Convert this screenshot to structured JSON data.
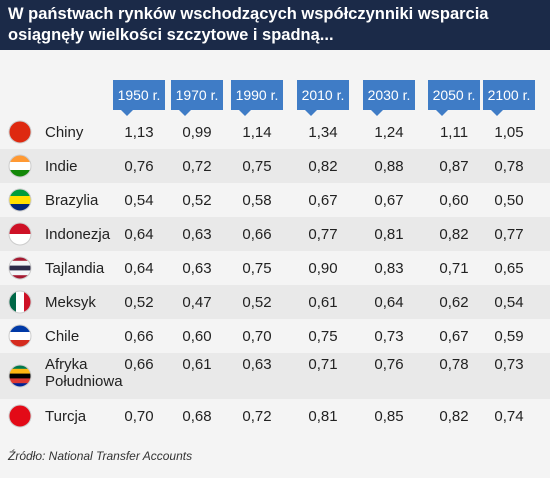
{
  "header": {
    "title": [
      "W państwach rynków wschodzących współczynniki wsparcia",
      "osiągnęły wielkości szczytowe i spadną..."
    ]
  },
  "table": {
    "columns": [
      "1950 r.",
      "1970 r.",
      "1990 r.",
      "2010 r.",
      "2030 r.",
      "2050 r.",
      "2100 r."
    ],
    "rows": [
      {
        "country": "Chiny",
        "values": [
          "1,13",
          "0,99",
          "1,14",
          "1,34",
          "1,24",
          "1,11",
          "1,05"
        ]
      },
      {
        "country": "Indie",
        "values": [
          "0,76",
          "0,72",
          "0,75",
          "0,82",
          "0,88",
          "0,87",
          "0,78"
        ]
      },
      {
        "country": "Brazylia",
        "values": [
          "0,54",
          "0,52",
          "0,58",
          "0,67",
          "0,67",
          "0,60",
          "0,50"
        ]
      },
      {
        "country": "Indonezja",
        "values": [
          "0,64",
          "0,63",
          "0,66",
          "0,77",
          "0,81",
          "0,82",
          "0,77"
        ]
      },
      {
        "country": "Tajlandia",
        "values": [
          "0,64",
          "0,63",
          "0,75",
          "0,90",
          "0,83",
          "0,71",
          "0,65"
        ]
      },
      {
        "country": "Meksyk",
        "values": [
          "0,52",
          "0,47",
          "0,52",
          "0,61",
          "0,64",
          "0,62",
          "0,54"
        ]
      },
      {
        "country": "Chile",
        "values": [
          "0,66",
          "0,60",
          "0,70",
          "0,75",
          "0,73",
          "0,67",
          "0,59"
        ]
      },
      {
        "country": "Afryka Południowa",
        "values": [
          "0,66",
          "0,61",
          "0,63",
          "0,71",
          "0,76",
          "0,78",
          "0,73"
        ]
      },
      {
        "country": "Turcja",
        "values": [
          "0,70",
          "0,68",
          "0,72",
          "0,81",
          "0,85",
          "0,82",
          "0,74"
        ]
      }
    ]
  },
  "source": "Źródło: National Transfer Accounts"
}
